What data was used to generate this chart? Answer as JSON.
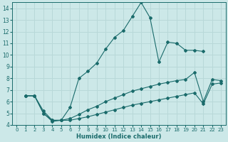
{
  "xlabel": "Humidex (Indice chaleur)",
  "xlim": [
    -0.5,
    23.5
  ],
  "ylim": [
    4,
    14.5
  ],
  "xticks": [
    0,
    1,
    2,
    3,
    4,
    5,
    6,
    7,
    8,
    9,
    10,
    11,
    12,
    13,
    14,
    15,
    16,
    17,
    18,
    19,
    20,
    21,
    22,
    23
  ],
  "yticks": [
    4,
    5,
    6,
    7,
    8,
    9,
    10,
    11,
    12,
    13,
    14
  ],
  "bg_color": "#cce8e8",
  "line_color": "#1a6b6b",
  "grid_color": "#b8d8d8",
  "line1_x": [
    1,
    2,
    3,
    4,
    5,
    6,
    7,
    8,
    9,
    10,
    11,
    12,
    13,
    14,
    15,
    16,
    17,
    18,
    19,
    20,
    21
  ],
  "line1_y": [
    6.5,
    6.5,
    5.0,
    4.3,
    4.4,
    5.5,
    8.0,
    8.6,
    9.3,
    10.5,
    11.5,
    12.1,
    13.3,
    14.5,
    13.2,
    9.4,
    11.1,
    11.0,
    10.4,
    10.4,
    10.3
  ],
  "line2_x": [
    1,
    2,
    3,
    4,
    5,
    6,
    7,
    8,
    9,
    10,
    11,
    12,
    13,
    14,
    15,
    16,
    17,
    18,
    19,
    20,
    21,
    22,
    23
  ],
  "line2_y": [
    6.5,
    6.5,
    5.2,
    4.4,
    4.4,
    4.55,
    4.9,
    5.3,
    5.6,
    6.0,
    6.3,
    6.6,
    6.9,
    7.1,
    7.3,
    7.5,
    7.65,
    7.8,
    7.9,
    8.5,
    6.0,
    7.9,
    7.8
  ],
  "line3_x": [
    1,
    2,
    3,
    4,
    5,
    6,
    7,
    8,
    9,
    10,
    11,
    12,
    13,
    14,
    15,
    16,
    17,
    18,
    19,
    20,
    21,
    22,
    23
  ],
  "line3_y": [
    6.5,
    6.5,
    5.0,
    4.4,
    4.4,
    4.4,
    4.55,
    4.7,
    4.9,
    5.1,
    5.3,
    5.5,
    5.7,
    5.85,
    6.0,
    6.15,
    6.3,
    6.45,
    6.6,
    6.75,
    5.8,
    7.5,
    7.6
  ]
}
